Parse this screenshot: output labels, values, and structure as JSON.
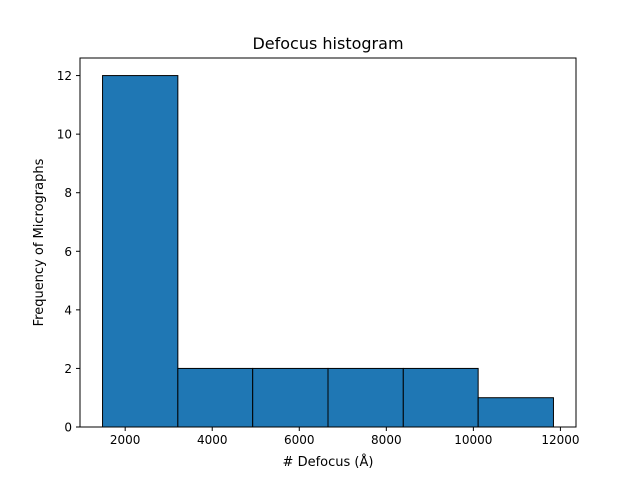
{
  "chart_data": {
    "type": "bar",
    "title": "Defocus histogram",
    "xlabel": "# Defocus (Å)",
    "ylabel": "Frequency of Micrographs",
    "bins": [
      {
        "x0": 1480,
        "x1": 3210,
        "count": 12
      },
      {
        "x0": 3210,
        "x1": 4930,
        "count": 2
      },
      {
        "x0": 4930,
        "x1": 6660,
        "count": 2
      },
      {
        "x0": 6660,
        "x1": 8390,
        "count": 2
      },
      {
        "x0": 8390,
        "x1": 10110,
        "count": 2
      },
      {
        "x0": 10110,
        "x1": 11840,
        "count": 1
      }
    ],
    "xlim": [
      962,
      12358
    ],
    "ylim": [
      0,
      12.6
    ],
    "xticks": [
      2000,
      4000,
      6000,
      8000,
      10000,
      12000
    ],
    "xtick_labels": [
      "2000",
      "4000",
      "6000",
      "8000",
      "10000",
      "12000"
    ],
    "yticks": [
      0,
      2,
      4,
      6,
      8,
      10,
      12
    ],
    "ytick_labels": [
      "0",
      "2",
      "4",
      "6",
      "8",
      "10",
      "12"
    ],
    "bar_color": "#1f77b4",
    "edge_color": "#000000",
    "grid": false,
    "legend": "none"
  }
}
